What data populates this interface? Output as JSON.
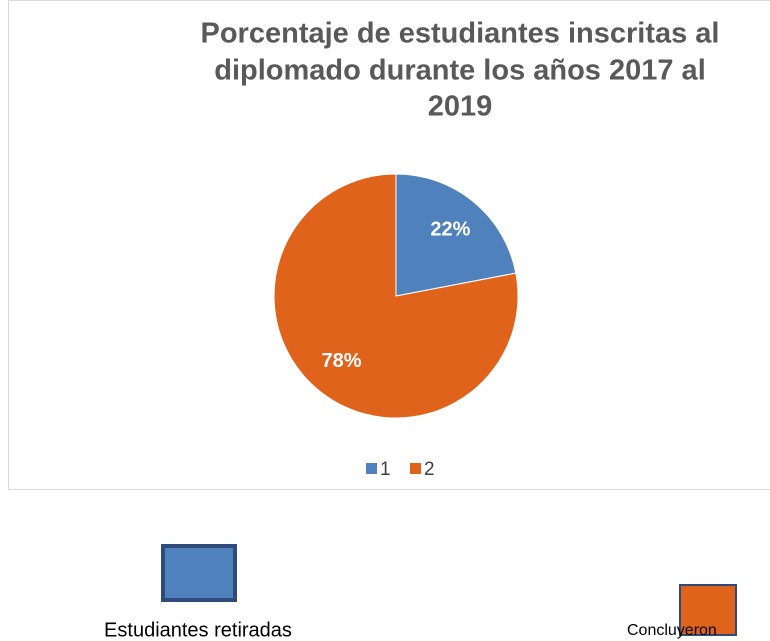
{
  "chart_data": {
    "type": "pie",
    "title": [
      "Porcentaje de estudiantes inscritas al",
      "diplomado durante los años 2017 al",
      "2019"
    ],
    "categories": [
      "1",
      "2"
    ],
    "values": [
      22,
      78
    ],
    "value_labels": [
      "22%",
      "78%"
    ],
    "colors": [
      "#4f81bd",
      "#e0631b"
    ],
    "legend": "bottom"
  },
  "key": {
    "items": [
      {
        "label": "Estudiantes retiradas",
        "color": "#4f81bd"
      },
      {
        "label": "Concluyeron",
        "color": "#e0631b"
      }
    ]
  }
}
